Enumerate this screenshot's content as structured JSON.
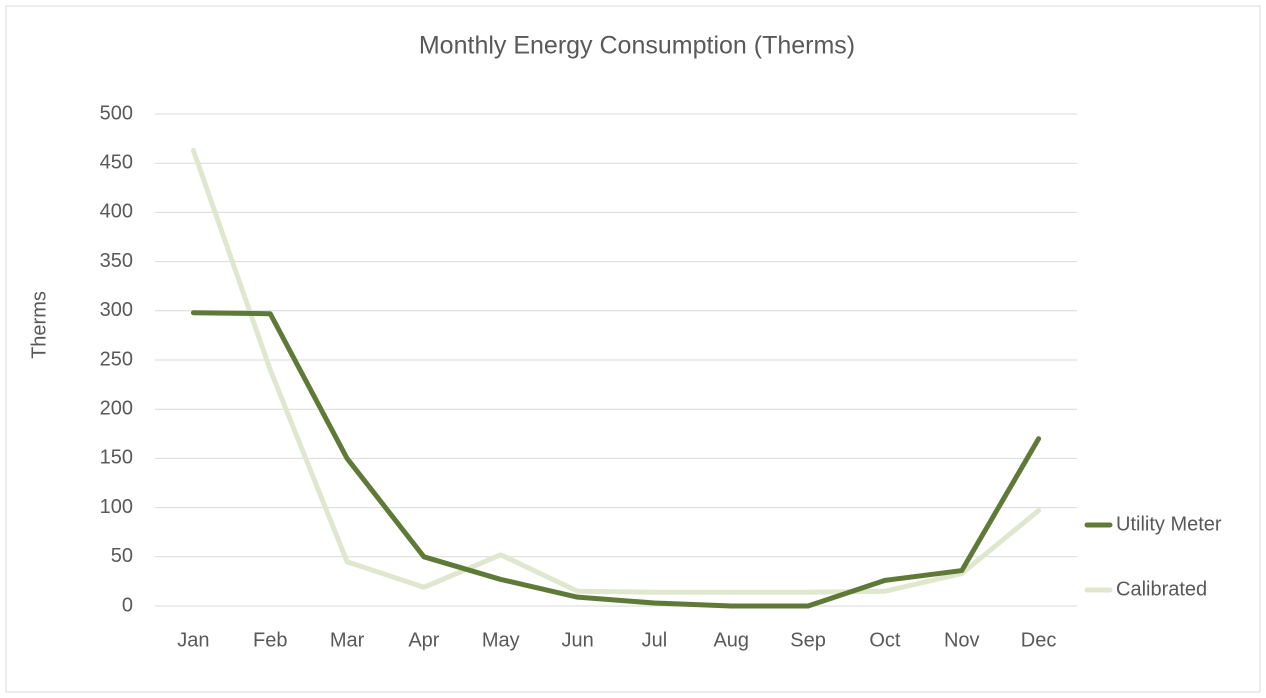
{
  "chart_data": {
    "type": "line",
    "title": "Monthly Energy Consumption (Therms)",
    "y_label": "Therms",
    "categories": [
      "Jan",
      "Feb",
      "Mar",
      "Apr",
      "May",
      "Jun",
      "Jul",
      "Aug",
      "Sep",
      "Oct",
      "Nov",
      "Dec"
    ],
    "series": [
      {
        "name": "Utility Meter",
        "color": "#5f7a37",
        "values": [
          298,
          297,
          150,
          50,
          27,
          9,
          3,
          0,
          0,
          26,
          36,
          170
        ]
      },
      {
        "name": "Calibrated",
        "color": "#dfe7cf",
        "values": [
          463,
          240,
          45,
          19,
          52,
          15,
          14,
          14,
          14,
          15,
          33,
          97
        ]
      }
    ],
    "ylim": [
      0,
      500
    ],
    "yticks": [
      0,
      50,
      100,
      150,
      200,
      250,
      300,
      350,
      400,
      450,
      500
    ],
    "grid": true,
    "legend": "right"
  }
}
